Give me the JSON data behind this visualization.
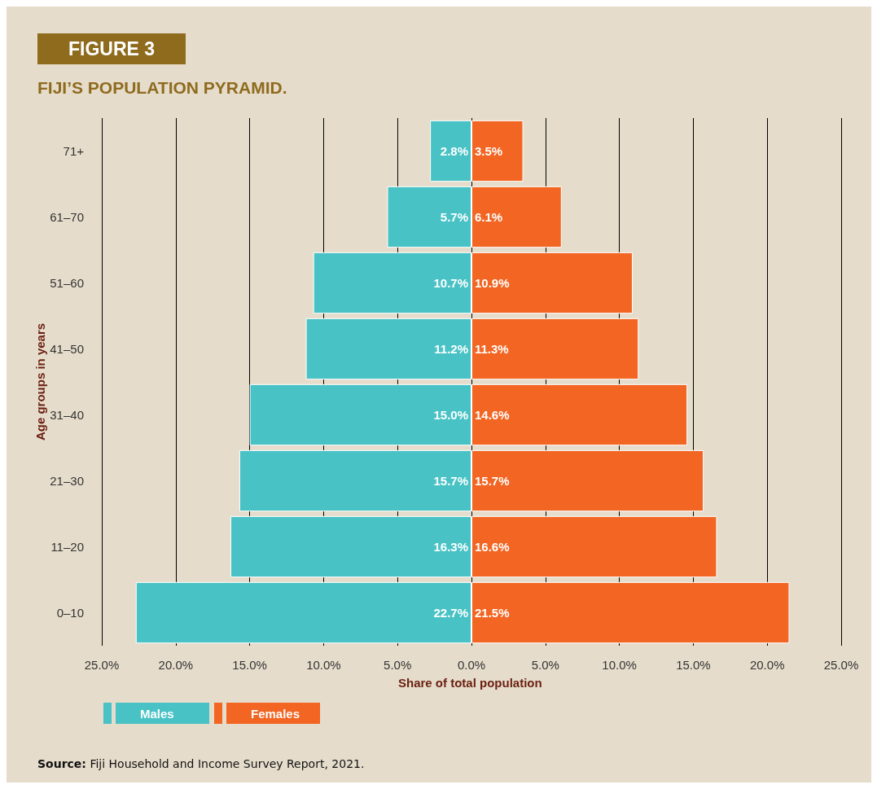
{
  "chart_data": [
    {
      "type": "bar",
      "orientation": "horizontal",
      "title": "FIGURE 3",
      "subtitle": "FIJI’S POPULATION PYRAMID.",
      "ylabel": "Age groups in years",
      "categories": [
        "71+",
        "61–70",
        "51–60",
        "41–50",
        "31–40",
        "21–30",
        "11–20",
        "0–10"
      ],
      "series": [
        {
          "name": "Males",
          "color": "#48c2c5",
          "values": [
            2.8,
            5.7,
            10.7,
            11.2,
            15.0,
            15.7,
            16.3,
            22.7
          ],
          "value_labels": [
            "2.8%",
            "5.7%",
            "10.7%",
            "11.2%",
            "15.0%",
            "15.7%",
            "16.3%",
            "22.7%"
          ]
        }
      ],
      "xlim": [
        25,
        0
      ],
      "xticks": [
        {
          "value": 25,
          "label": "25.0%"
        },
        {
          "value": 20,
          "label": "20.0%"
        },
        {
          "value": 15,
          "label": "15.0%"
        },
        {
          "value": 10,
          "label": "10.0%"
        },
        {
          "value": 5,
          "label": "5.0%"
        },
        {
          "value": 0,
          "label": "0.0%"
        }
      ],
      "grid": "x",
      "legend": "bottom left",
      "annotations": [
        "Source: Fiji Household and Income Survey Report, 2021."
      ]
    },
    {
      "type": "bar",
      "orientation": "horizontal",
      "xlabel": "Share of total population",
      "categories": [
        "71+",
        "61–70",
        "51–60",
        "41–50",
        "31–40",
        "21–30",
        "11–20",
        "0–10"
      ],
      "series": [
        {
          "name": "Females",
          "color": "#f26522",
          "values": [
            3.5,
            6.1,
            10.9,
            11.3,
            14.6,
            15.7,
            16.6,
            21.5
          ],
          "value_labels": [
            "3.5%",
            "6.1%",
            "10.9%",
            "11.3%",
            "14.6%",
            "15.7%",
            "16.6%",
            "21.5%"
          ]
        }
      ],
      "xlim": [
        0,
        25
      ],
      "xticks": [
        {
          "value": 0,
          "label": null
        },
        {
          "value": 5,
          "label": "5.0%"
        },
        {
          "value": 10,
          "label": "10.0%"
        },
        {
          "value": 15,
          "label": "15.0%"
        },
        {
          "value": 20,
          "label": "20.0%"
        },
        {
          "value": 25,
          "label": "25.0%"
        }
      ],
      "grid": "x",
      "legend": "bottom left",
      "tick_labels": "x"
    }
  ]
}
